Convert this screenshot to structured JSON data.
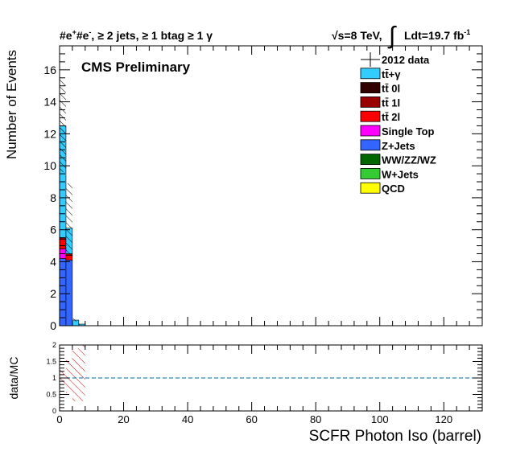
{
  "header": {
    "channel": "#e",
    "channel_sup1": "+",
    "channel_mid": "#e",
    "channel_sup2": "-",
    "channel_rest": ", ≥ 2 jets, ≥ 1 btag ≥ 1 γ",
    "sqrt_s": "√s=8 TeV,",
    "integral_sign": "∫",
    "lumi": "Ldt=19.7 fb",
    "lumi_sup": "-1"
  },
  "chart_data": [
    {
      "type": "bar",
      "stacked": true,
      "title": "",
      "label": "CMS Preliminary",
      "xlabel": "SCFR Photon Iso (barrel)",
      "ylabel": "Number of Events",
      "xlim": [
        0,
        132
      ],
      "ylim": [
        0,
        17.5
      ],
      "x_ticks": [
        0,
        20,
        40,
        60,
        80,
        100,
        120
      ],
      "y_ticks": [
        0,
        2,
        4,
        6,
        8,
        10,
        12,
        14,
        16
      ],
      "bin_width": 2,
      "x_bin_lowedges": [
        0,
        2,
        4,
        6
      ],
      "series": [
        {
          "name": "Z+Jets",
          "color": "#3366ff",
          "values": [
            4.2,
            4.1,
            0.0,
            0.0
          ]
        },
        {
          "name": "Single Top",
          "color": "#ff00ff",
          "values": [
            0.6,
            0.0,
            0.0,
            0.0
          ]
        },
        {
          "name": "tt̄ 2l",
          "color": "#ff0000",
          "values": [
            0.6,
            0.3,
            0.0,
            0.0
          ]
        },
        {
          "name": "tt̄ 1l",
          "color": "#990000",
          "values": [
            0.1,
            0.1,
            0.0,
            0.0
          ]
        },
        {
          "name": "tt̄ 0l",
          "color": "#330000",
          "values": [
            0.0,
            0.0,
            0.0,
            0.0
          ]
        },
        {
          "name": "WW/ZZ/WZ",
          "color": "#006600",
          "values": [
            0.0,
            0.0,
            0.0,
            0.0
          ]
        },
        {
          "name": "W+Jets",
          "color": "#33cc33",
          "values": [
            0.0,
            0.0,
            0.0,
            0.0
          ]
        },
        {
          "name": "QCD",
          "color": "#ffff00",
          "values": [
            0.0,
            0.0,
            0.0,
            0.0
          ]
        },
        {
          "name": "tt̄+γ",
          "color": "#33ccff",
          "values": [
            7.0,
            1.6,
            0.35,
            0.1
          ]
        }
      ],
      "uncertainty_band": {
        "low": [
          9.6,
          4.4,
          0.25,
          0.05
        ],
        "high": [
          15.4,
          8.9,
          0.45,
          0.15
        ]
      },
      "data_points": {
        "name": "2012 data",
        "values": [
          0,
          0,
          0,
          0
        ]
      },
      "legend": {
        "placement": "top-right",
        "entries": [
          {
            "name": "2012 data",
            "style": "marker"
          },
          {
            "name": "tt̄+γ",
            "color": "#33ccff"
          },
          {
            "name": "tt̄ 0l",
            "color": "#330000"
          },
          {
            "name": "tt̄ 1l",
            "color": "#990000"
          },
          {
            "name": "tt̄ 2l",
            "color": "#ff0000"
          },
          {
            "name": "Single Top",
            "color": "#ff00ff"
          },
          {
            "name": "Z+Jets",
            "color": "#3366ff"
          },
          {
            "name": "WW/ZZ/WZ",
            "color": "#006600"
          },
          {
            "name": "W+Jets",
            "color": "#33cc33"
          },
          {
            "name": "QCD",
            "color": "#ffff00"
          }
        ]
      }
    },
    {
      "type": "line",
      "title": "",
      "xlabel": "SCFR Photon Iso (barrel)",
      "ylabel": "data/MC",
      "xlim": [
        0,
        132
      ],
      "ylim": [
        0,
        2
      ],
      "x_ticks": [
        0,
        20,
        40,
        60,
        80,
        100,
        120
      ],
      "y_ticks": [
        0,
        0.5,
        1,
        1.5,
        2
      ],
      "y_tick_labels": [
        "0",
        "0.5",
        "1",
        "1.5",
        "2"
      ],
      "x_tick_labels": [
        "0",
        "20",
        "40",
        "60",
        "80",
        "100",
        "120"
      ],
      "reference_line": 1,
      "reference_color": "#006699",
      "uncertainty_band": {
        "x_lowedges": [
          0,
          2,
          4,
          6
        ],
        "low": [
          0.75,
          0.55,
          0.3,
          0.3
        ],
        "high": [
          1.25,
          1.6,
          1.9,
          2.0
        ],
        "color": "#cc0000"
      }
    }
  ]
}
